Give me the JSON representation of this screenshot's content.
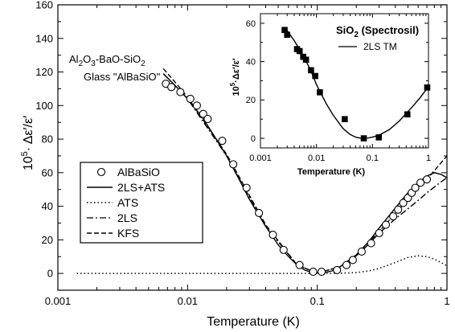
{
  "chart_data": [
    {
      "type": "line",
      "xscale": "log",
      "xlim": [
        0.001,
        1
      ],
      "ylim": [
        -10,
        160
      ],
      "xticks": [
        0.001,
        0.01,
        0.1,
        1
      ],
      "xtick_labels": [
        "0.001",
        "0.01",
        "0.1",
        "1"
      ],
      "yticks": [
        0,
        20,
        40,
        60,
        80,
        100,
        120,
        140,
        160
      ],
      "ytick_labels": [
        "0",
        "20",
        "40",
        "60",
        "80",
        "100",
        "120",
        "140",
        "160"
      ],
      "xlabel": "Temperature (K)",
      "ylabel_prefix": "10",
      "ylabel_exp": "5",
      "ylabel_suffix": "· Δε′/ε′",
      "annotation": {
        "line1_parts": [
          "Al",
          "2",
          "O",
          "3",
          "-BaO-SiO",
          "2"
        ],
        "line2": "Glass \"AlBaSiO\""
      },
      "legend_position": "lower-left",
      "series": [
        {
          "name": "AlBaSiO",
          "style": "open-circle",
          "x": [
            0.0068,
            0.0075,
            0.0088,
            0.0105,
            0.0118,
            0.0132,
            0.0143,
            0.0185,
            0.0225,
            0.0285,
            0.0355,
            0.0455,
            0.055,
            0.073,
            0.093,
            0.108,
            0.142,
            0.168,
            0.188,
            0.22,
            0.26,
            0.3,
            0.338,
            0.385,
            0.42,
            0.46,
            0.5,
            0.535,
            0.57,
            0.625,
            0.7
          ],
          "y": [
            113,
            111,
            108,
            104,
            100,
            95,
            92,
            79,
            65,
            51,
            36,
            23,
            14,
            5,
            1,
            1,
            2,
            5,
            8,
            13,
            18,
            24,
            29,
            34,
            38,
            42,
            45,
            48,
            51,
            54,
            56
          ]
        },
        {
          "name": "2LS+ATS",
          "style": "solid",
          "x": [
            0.0065,
            0.008,
            0.01,
            0.013,
            0.016,
            0.02,
            0.025,
            0.03,
            0.04,
            0.05,
            0.06,
            0.07,
            0.08,
            0.09,
            0.1,
            0.11,
            0.13,
            0.15,
            0.2,
            0.25,
            0.3,
            0.4,
            0.5,
            0.6,
            0.7,
            0.8,
            0.9,
            1.0
          ],
          "y": [
            119,
            112,
            104,
            93,
            82,
            70,
            56,
            44,
            28,
            17,
            10,
            5,
            2,
            0.7,
            0.2,
            0.3,
            1.5,
            4,
            11,
            19,
            27,
            39,
            48,
            54,
            58,
            60,
            59,
            57
          ]
        },
        {
          "name": "ATS",
          "style": "dotted",
          "x": [
            0.0014,
            0.01,
            0.05,
            0.1,
            0.15,
            0.2,
            0.25,
            0.3,
            0.4,
            0.5,
            0.6,
            0.7,
            0.8,
            0.9,
            1.0
          ],
          "y": [
            0,
            0,
            0,
            0,
            0.1,
            0.5,
            1.5,
            3,
            6.5,
            9.5,
            10.5,
            10,
            8.5,
            6.5,
            4.5
          ]
        },
        {
          "name": "2LS",
          "style": "dash-dot",
          "x": [
            0.0065,
            0.01,
            0.02,
            0.04,
            0.07,
            0.1,
            0.15,
            0.2,
            0.25,
            0.3,
            0.4,
            0.5,
            0.6,
            0.7,
            0.8,
            0.9,
            1.0
          ],
          "y": [
            119,
            104,
            70,
            28,
            5,
            0.2,
            4,
            10.5,
            17.5,
            24,
            32.5,
            38.5,
            43.5,
            48,
            51.5,
            54.5,
            57
          ]
        },
        {
          "name": "KFS",
          "style": "dashed",
          "x": [
            0.0065,
            0.008,
            0.01,
            0.02,
            0.04,
            0.07,
            0.1,
            0.15,
            0.2,
            0.3,
            0.5,
            0.7,
            1.0
          ],
          "y": [
            122,
            114,
            105,
            71,
            29,
            5,
            0.2,
            4,
            11,
            25,
            44,
            56,
            70
          ]
        }
      ]
    },
    {
      "type": "line",
      "xscale": "log",
      "xlim": [
        0.001,
        1
      ],
      "ylim": [
        -5,
        65
      ],
      "xticks": [
        0.001,
        0.01,
        0.1,
        1
      ],
      "xtick_labels": [
        "0.001",
        "0.01",
        "0.1",
        "1"
      ],
      "yticks": [
        0,
        20,
        40,
        60
      ],
      "ytick_labels": [
        "0",
        "20",
        "40",
        "60"
      ],
      "xlabel": "Temperature (K)",
      "ylabel_prefix": "10",
      "ylabel_exp": "5",
      "ylabel_suffix": "·Δε′/ε′",
      "title_main": "SiO",
      "title_sub": "2",
      "title_rest": " (Spectrosil)",
      "series": [
        {
          "name": "",
          "style": "filled-square",
          "x": [
            0.0027,
            0.003,
            0.0045,
            0.005,
            0.0058,
            0.0065,
            0.008,
            0.0095,
            0.0115,
            0.032,
            0.07,
            0.13,
            0.42,
            0.95
          ],
          "y": [
            56.5,
            54,
            46.5,
            45.5,
            42.5,
            41,
            35.5,
            32.5,
            24,
            10,
            0,
            0.5,
            12.5,
            26.5
          ]
        },
        {
          "name": "2LS TM",
          "style": "solid",
          "x": [
            0.0027,
            0.004,
            0.006,
            0.008,
            0.01,
            0.015,
            0.02,
            0.03,
            0.04,
            0.05,
            0.06,
            0.07,
            0.085,
            0.1,
            0.13,
            0.2,
            0.3,
            0.5,
            0.7,
            1.0
          ],
          "y": [
            58,
            51,
            42.5,
            35,
            28,
            18,
            12,
            5,
            2,
            0.6,
            0.1,
            0,
            0.2,
            0.6,
            1.6,
            4.5,
            9,
            16,
            21,
            27
          ]
        }
      ]
    }
  ]
}
